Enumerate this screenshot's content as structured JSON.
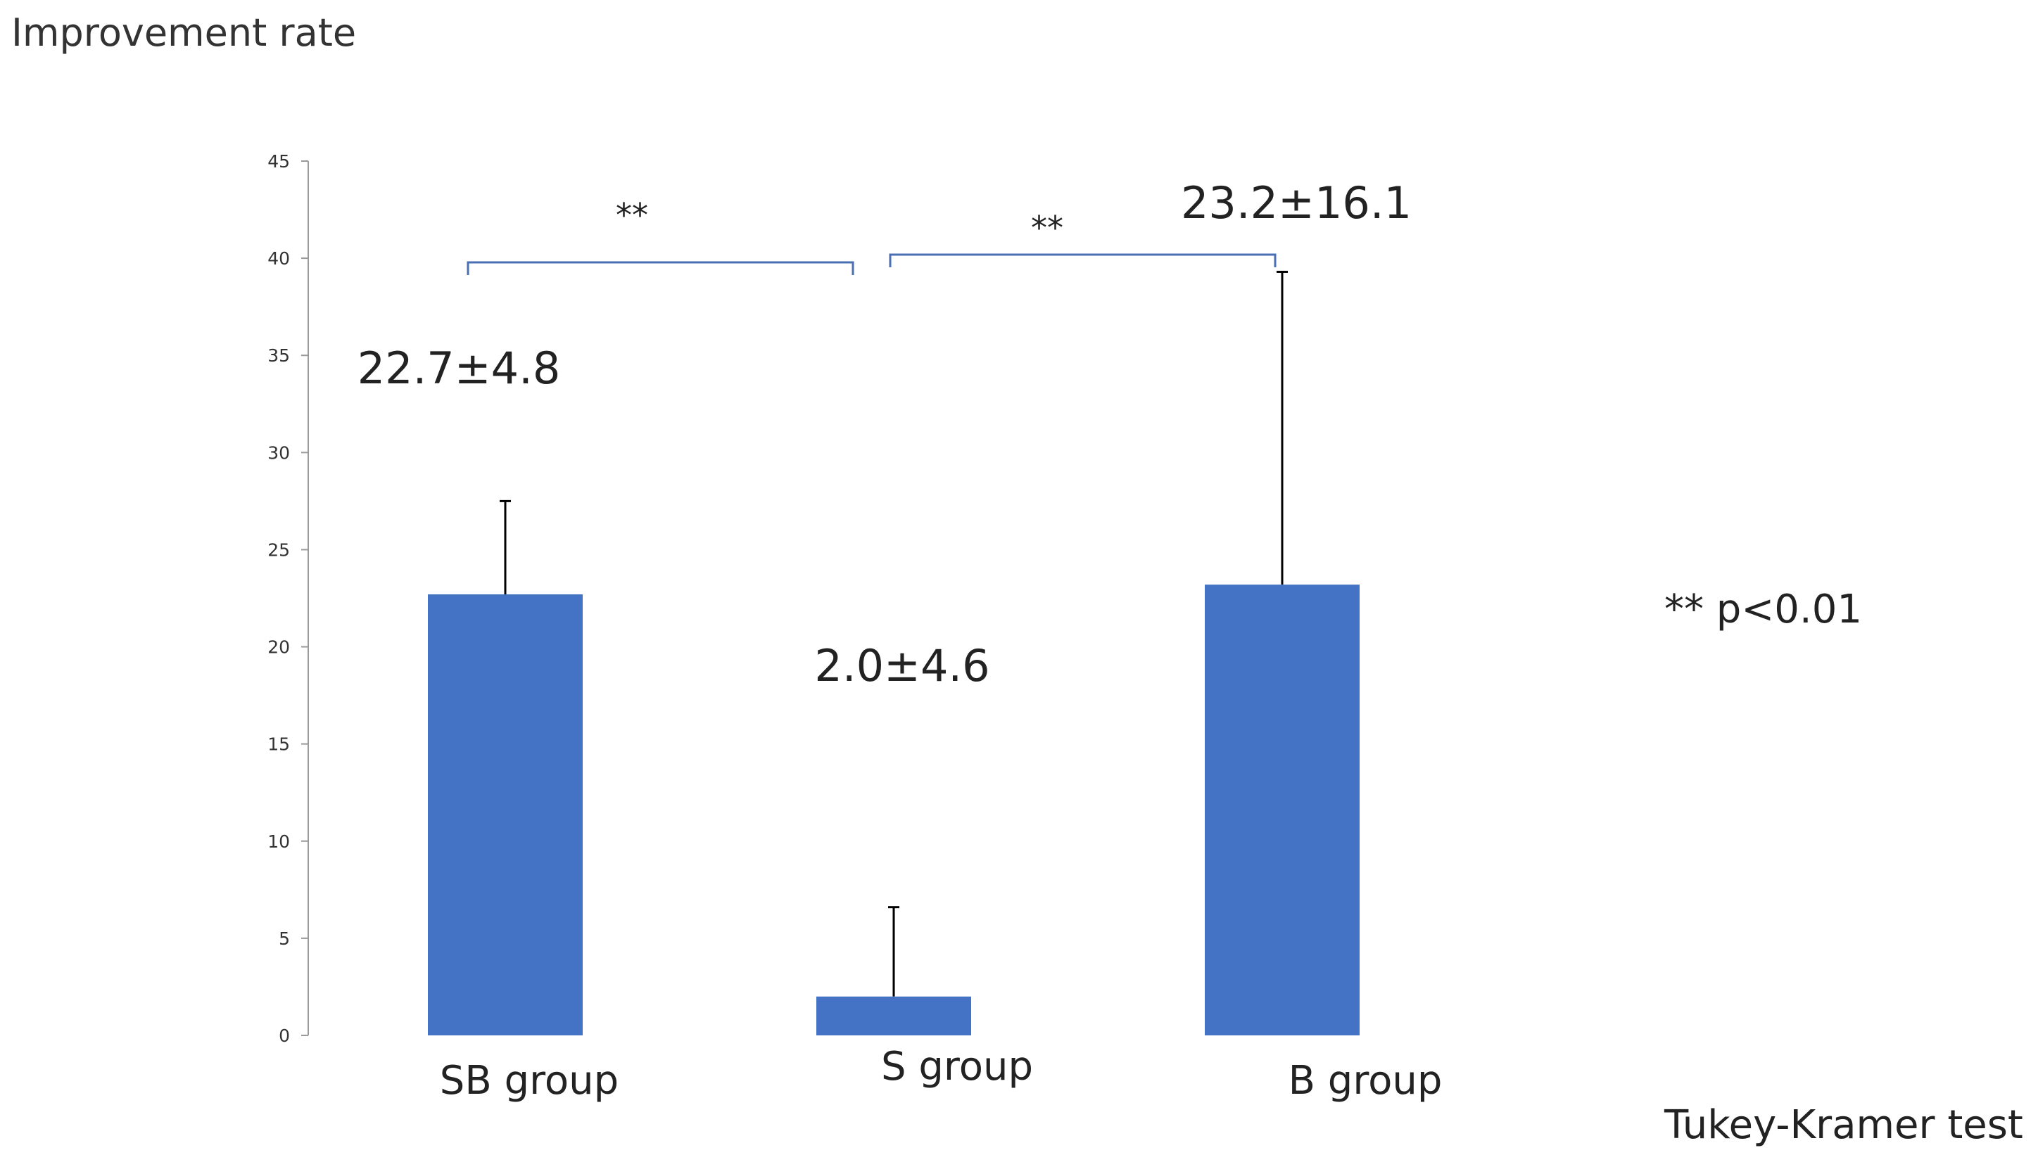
{
  "chart_data": {
    "type": "bar",
    "ylabel": "Improvement rate",
    "categories": [
      "SB group",
      "S group",
      "B group"
    ],
    "values": [
      22.7,
      2.0,
      23.2
    ],
    "errors": [
      4.8,
      4.6,
      16.1
    ],
    "value_labels": [
      "22.7±4.8",
      "2.0±4.6",
      "23.2±16.1"
    ],
    "ylim": [
      0,
      45
    ],
    "yticks": [
      0,
      5,
      10,
      15,
      20,
      25,
      30,
      35,
      40,
      45
    ],
    "grid": false,
    "bar_color": "#4472C4",
    "bracket_color": "#4A6FB3",
    "significance": [
      {
        "from": "SB group",
        "to": "S group",
        "label": "**"
      },
      {
        "from": "S group",
        "to": "B group",
        "label": "**"
      }
    ],
    "significance_note": "** p<0.01",
    "test_note": "Tukey-Kramer test"
  }
}
